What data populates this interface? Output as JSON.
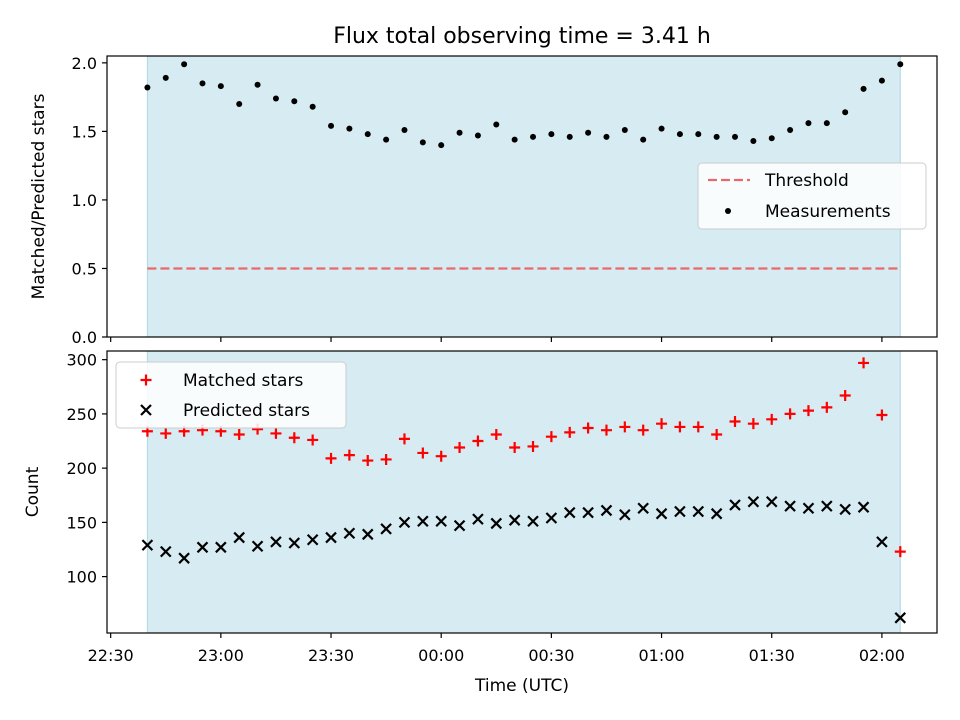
{
  "title": "Flux total observing time = 3.41 h",
  "colors": {
    "shade": "#add8e6",
    "threshold": "#e8696b",
    "measurements": "#000000",
    "matched": "#ff0000",
    "predicted": "#000000"
  },
  "chart_data": [
    {
      "type": "scatter",
      "panel": "top",
      "ylabel": "Matched/Predicted stars",
      "ylim": [
        0,
        2.05
      ],
      "yticks": [
        0.0,
        0.5,
        1.0,
        1.5,
        2.0
      ],
      "ytick_labels": [
        "0.0",
        "0.5",
        "1.0",
        "1.5",
        "2.0"
      ],
      "legend_position": "center-right",
      "legend": [
        "Threshold",
        "Measurements"
      ],
      "threshold": 0.5,
      "shaded_x_range": [
        "22:40",
        "02:05"
      ],
      "series": [
        {
          "name": "Measurements",
          "marker": "dot",
          "x": [
            "22:40",
            "22:45",
            "22:50",
            "22:55",
            "23:00",
            "23:05",
            "23:10",
            "23:15",
            "23:20",
            "23:25",
            "23:30",
            "23:35",
            "23:40",
            "23:45",
            "23:50",
            "23:55",
            "00:00",
            "00:05",
            "00:10",
            "00:15",
            "00:20",
            "00:25",
            "00:30",
            "00:35",
            "00:40",
            "00:45",
            "00:50",
            "00:55",
            "01:00",
            "01:05",
            "01:10",
            "01:15",
            "01:20",
            "01:25",
            "01:30",
            "01:35",
            "01:40",
            "01:45",
            "01:50",
            "01:55",
            "02:00",
            "02:05"
          ],
          "y": [
            1.82,
            1.89,
            1.99,
            1.85,
            1.83,
            1.7,
            1.84,
            1.74,
            1.72,
            1.68,
            1.54,
            1.52,
            1.48,
            1.44,
            1.51,
            1.42,
            1.4,
            1.49,
            1.47,
            1.55,
            1.44,
            1.46,
            1.48,
            1.46,
            1.49,
            1.46,
            1.51,
            1.44,
            1.52,
            1.48,
            1.48,
            1.46,
            1.46,
            1.43,
            1.45,
            1.51,
            1.56,
            1.56,
            1.64,
            1.81,
            1.87,
            1.99
          ]
        }
      ]
    },
    {
      "type": "scatter",
      "panel": "bottom",
      "xlabel": "Time (UTC)",
      "ylabel": "Count",
      "ylim": [
        48,
        308
      ],
      "yticks": [
        100,
        150,
        200,
        250,
        300
      ],
      "ytick_labels": [
        "100",
        "150",
        "200",
        "250",
        "300"
      ],
      "xticks": [
        "22:30",
        "23:00",
        "23:30",
        "00:00",
        "00:30",
        "01:00",
        "01:30",
        "02:00"
      ],
      "legend_position": "top-left",
      "legend": [
        "Matched stars",
        "Predicted stars"
      ],
      "shaded_x_range": [
        "22:40",
        "02:05"
      ],
      "series": [
        {
          "name": "Matched stars",
          "marker": "plus",
          "x": [
            "22:40",
            "22:45",
            "22:50",
            "22:55",
            "23:00",
            "23:05",
            "23:10",
            "23:15",
            "23:20",
            "23:25",
            "23:30",
            "23:35",
            "23:40",
            "23:45",
            "23:50",
            "23:55",
            "00:00",
            "00:05",
            "00:10",
            "00:15",
            "00:20",
            "00:25",
            "00:30",
            "00:35",
            "00:40",
            "00:45",
            "00:50",
            "00:55",
            "01:00",
            "01:05",
            "01:10",
            "01:15",
            "01:20",
            "01:25",
            "01:30",
            "01:35",
            "01:40",
            "01:45",
            "01:50",
            "01:55",
            "02:00",
            "02:05"
          ],
          "y": [
            234,
            232,
            234,
            235,
            234,
            231,
            236,
            232,
            228,
            226,
            209,
            212,
            207,
            208,
            227,
            214,
            211,
            219,
            225,
            231,
            219,
            220,
            229,
            233,
            237,
            235,
            238,
            235,
            241,
            238,
            238,
            231,
            243,
            241,
            245,
            250,
            253,
            256,
            267,
            297,
            249,
            123
          ]
        },
        {
          "name": "Predicted stars",
          "marker": "x",
          "x": [
            "22:40",
            "22:45",
            "22:50",
            "22:55",
            "23:00",
            "23:05",
            "23:10",
            "23:15",
            "23:20",
            "23:25",
            "23:30",
            "23:35",
            "23:40",
            "23:45",
            "23:50",
            "23:55",
            "00:00",
            "00:05",
            "00:10",
            "00:15",
            "00:20",
            "00:25",
            "00:30",
            "00:35",
            "00:40",
            "00:45",
            "00:50",
            "00:55",
            "01:00",
            "01:05",
            "01:10",
            "01:15",
            "01:20",
            "01:25",
            "01:30",
            "01:35",
            "01:40",
            "01:45",
            "01:50",
            "01:55",
            "02:00",
            "02:05"
          ],
          "y": [
            129,
            123,
            117,
            127,
            127,
            136,
            128,
            132,
            131,
            134,
            136,
            140,
            139,
            144,
            150,
            151,
            151,
            147,
            153,
            149,
            152,
            151,
            154,
            159,
            159,
            161,
            157,
            163,
            158,
            160,
            160,
            158,
            166,
            169,
            169,
            165,
            163,
            165,
            162,
            164,
            132,
            62
          ]
        }
      ]
    }
  ]
}
